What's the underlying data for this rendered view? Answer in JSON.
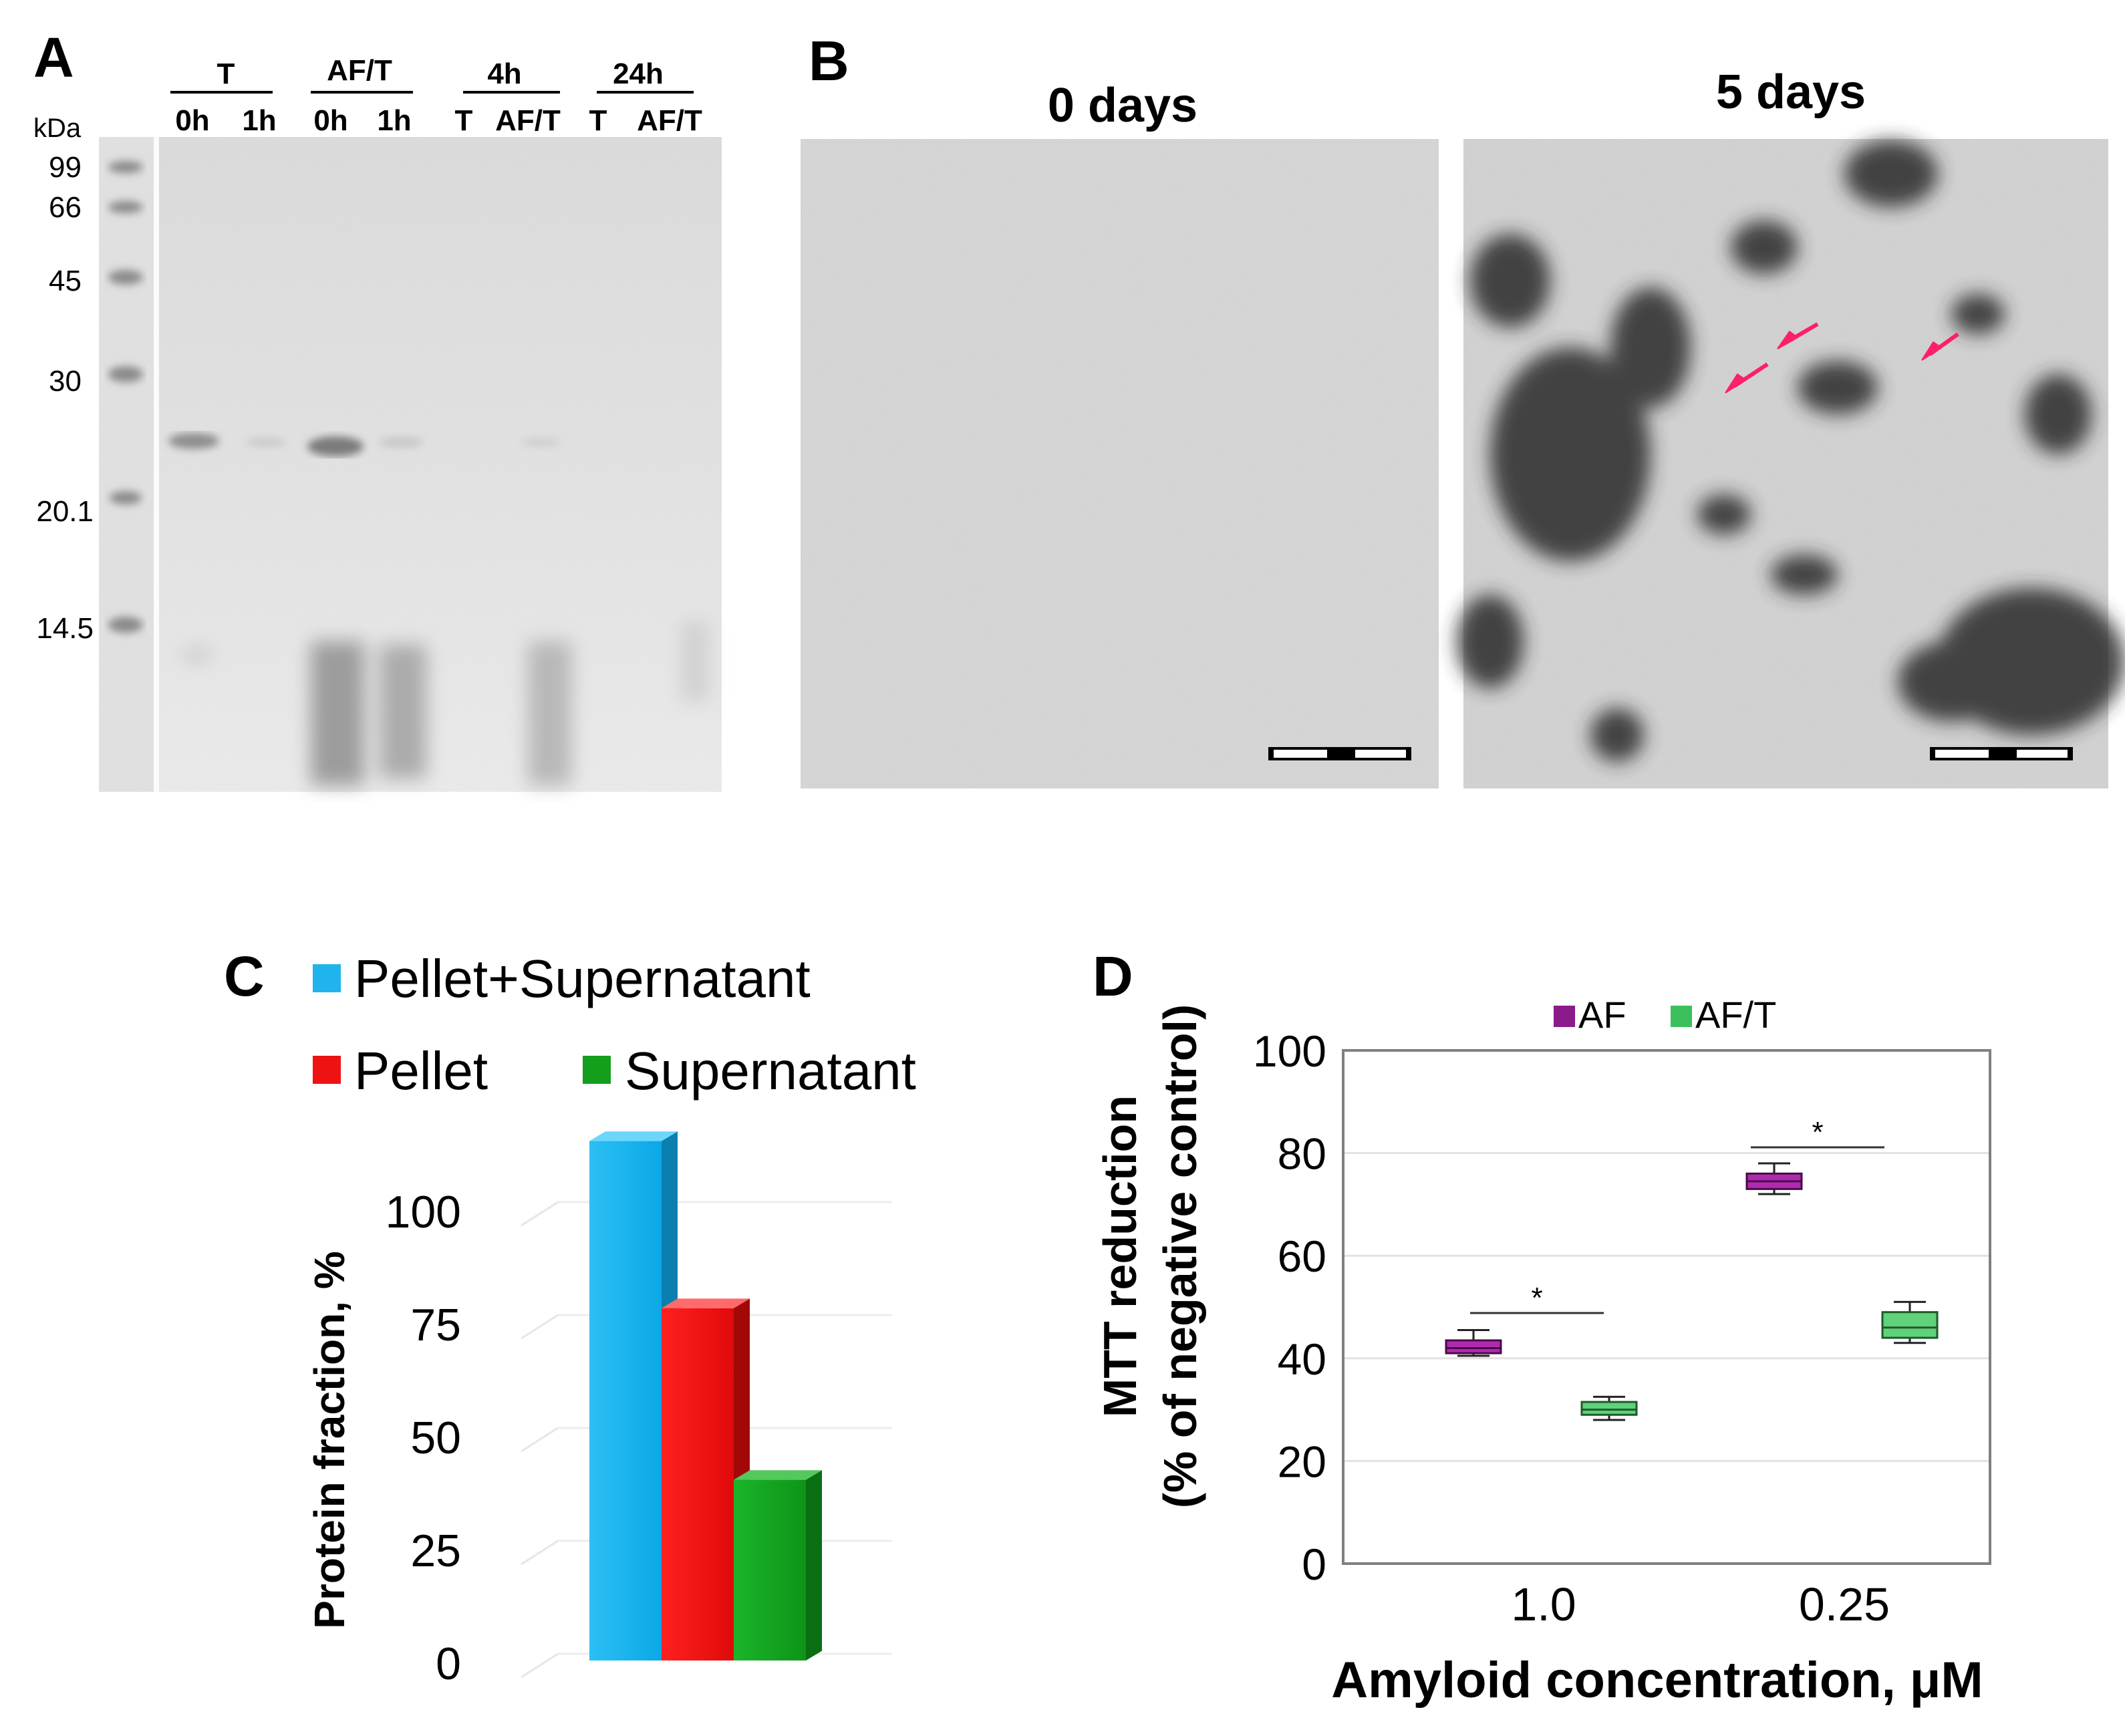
{
  "panels": {
    "A": {
      "letter": "A",
      "unit": "kDa",
      "markers": [
        "99",
        "66",
        "45",
        "30",
        "20.1",
        "14.5"
      ],
      "groups": [
        {
          "label": "T",
          "lanes": [
            "0h",
            "1h"
          ]
        },
        {
          "label": "AF/T",
          "lanes": [
            "0h",
            "1h"
          ]
        },
        {
          "label": "4h",
          "lanes": [
            "T",
            "AF/T"
          ]
        },
        {
          "label": "24h",
          "lanes": [
            "T",
            "AF/T"
          ]
        }
      ]
    },
    "B": {
      "letter": "B",
      "images": [
        {
          "title": "0 days"
        },
        {
          "title": "5 days"
        }
      ]
    },
    "C": {
      "letter": "C",
      "colors": {
        "Pellet+Supernatant": "#1fb4ec",
        "Pellet": "#ee1212",
        "Supernatant": "#139e1c"
      }
    },
    "D": {
      "letter": "D",
      "legend_colors": {
        "AF": "#8b1a8b",
        "AF/T": "#3cc05c"
      },
      "significance": "*"
    }
  },
  "chart_data": [
    {
      "type": "bar",
      "panel": "C",
      "title": "",
      "categories": [
        "Pellet+Supernatant",
        "Pellet",
        "Supernatant"
      ],
      "values": [
        115,
        78,
        40
      ],
      "ylabel": "Protein fraction, %",
      "xlabel": "",
      "ylim": [
        0,
        125
      ],
      "yticks": [
        "0",
        "25",
        "50",
        "75",
        "100"
      ],
      "legend_placement": "top",
      "grid": true
    },
    {
      "type": "box",
      "panel": "D",
      "title": "",
      "xlabel": "Amyloid concentration, μM",
      "ylabel_line1": "MTT reduction",
      "ylabel_line2": "(% of negative control)",
      "categories": [
        "1.0",
        "0.25"
      ],
      "ylim": [
        0,
        100
      ],
      "yticks": [
        "0",
        "20",
        "40",
        "60",
        "80",
        "100"
      ],
      "legend_placement": "top",
      "grid": true,
      "series": [
        {
          "name": "AF",
          "boxes": [
            {
              "min": 40.5,
              "q1": 41,
              "median": 42,
              "q3": 43.5,
              "max": 45.5
            },
            {
              "min": 72,
              "q1": 73,
              "median": 74.5,
              "q3": 76,
              "max": 78
            }
          ]
        },
        {
          "name": "AF/T",
          "boxes": [
            {
              "min": 28,
              "q1": 29,
              "median": 30,
              "q3": 31.5,
              "max": 32.5
            },
            {
              "min": 43,
              "q1": 44,
              "median": 46,
              "q3": 49,
              "max": 51
            }
          ]
        }
      ]
    }
  ]
}
